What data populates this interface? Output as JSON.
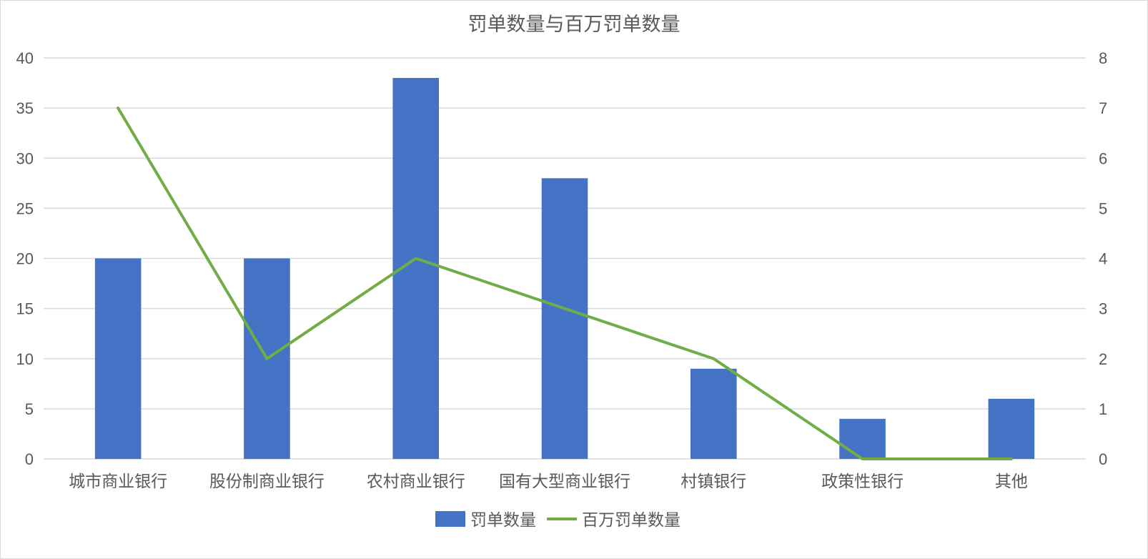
{
  "chart_data": {
    "type": "bar",
    "title": "罚单数量与百万罚单数量",
    "categories": [
      "城市商业银行",
      "股份制商业银行",
      "农村商业银行",
      "国有大型商业银行",
      "村镇银行",
      "政策性银行",
      "其他"
    ],
    "series": [
      {
        "name": "罚单数量",
        "type": "bar",
        "axis": "left",
        "color": "#4472C4",
        "values": [
          20,
          20,
          38,
          28,
          9,
          4,
          6
        ]
      },
      {
        "name": "百万罚单数量",
        "type": "line",
        "axis": "right",
        "color": "#70AD47",
        "values": [
          7,
          2,
          4,
          3,
          2,
          0,
          0
        ]
      }
    ],
    "y_left": {
      "min": 0,
      "max": 40,
      "ticks": [
        "0",
        "5",
        "10",
        "15",
        "20",
        "25",
        "30",
        "35",
        "40"
      ]
    },
    "y_right": {
      "min": 0,
      "max": 8,
      "ticks": [
        "0",
        "1",
        "2",
        "3",
        "4",
        "5",
        "6",
        "7",
        "8"
      ]
    },
    "grid": true,
    "legend": "bottom"
  }
}
